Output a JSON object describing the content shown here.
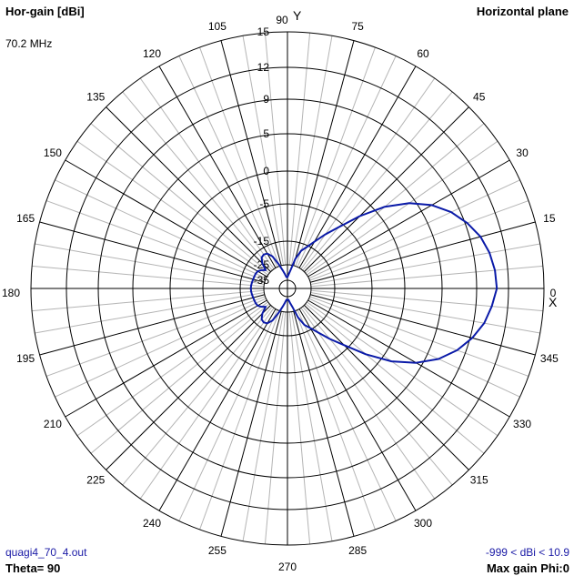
{
  "header": {
    "title_left": "Hor-gain [dBi]",
    "title_right": "Horizontal plane",
    "frequency": "70.2 MHz"
  },
  "footer": {
    "filename": "quagi4_70_4.out",
    "theta": "Theta= 90",
    "range": "-999 < dBi < 10.9",
    "max_gain": "Max gain Phi:0"
  },
  "colors": {
    "pattern": "#0a1aa8",
    "grid_major": "#000000",
    "grid_minor": "#b4b4b4",
    "footer_text": "#1a1aa6"
  },
  "chart_data": {
    "type": "polar-line",
    "title": "Hor-gain [dBi]",
    "subtitle": "Horizontal plane",
    "radial_unit": "dBi",
    "radial_ticks": [
      "15",
      "12",
      "9",
      "5",
      "0",
      "-5",
      "-15",
      "-25",
      "-35"
    ],
    "radial_tick_values": [
      15,
      12,
      9,
      5,
      0,
      -5,
      -15,
      -25,
      -35
    ],
    "angle_ticks": [
      "0",
      "15",
      "30",
      "45",
      "60",
      "75",
      "90",
      "105",
      "120",
      "135",
      "150",
      "165",
      "180",
      "195",
      "210",
      "225",
      "240",
      "255",
      "270",
      "285",
      "300",
      "315",
      "330",
      "345"
    ],
    "axis_labels": {
      "x": "X",
      "y": "Y"
    },
    "grid_major_step_deg": 15,
    "grid_minor_step_deg": 5,
    "series": [
      {
        "phi_deg": [
          0,
          5,
          10,
          15,
          20,
          25,
          30,
          35,
          40,
          45,
          50,
          55,
          60,
          65,
          70,
          75,
          80,
          85,
          90,
          95,
          100,
          105,
          110,
          115,
          120,
          125,
          130,
          135,
          140,
          145,
          150,
          155,
          160,
          165,
          170,
          175,
          180,
          185,
          190,
          195,
          200,
          205,
          210,
          215,
          220,
          225,
          230,
          235,
          240,
          245,
          250,
          255,
          260,
          265,
          270,
          275,
          280,
          285,
          290,
          295,
          300,
          305,
          310,
          315,
          320,
          325,
          330,
          335,
          340,
          345,
          350,
          355
        ],
        "gain_dbi": [
          10.9,
          10.8,
          10.5,
          10.0,
          9.2,
          8.0,
          6.4,
          4.2,
          1.3,
          -2.3,
          -6.2,
          -10.0,
          -13.2,
          -15.7,
          -18.0,
          -22.0,
          -28.0,
          -31.0,
          -33.0,
          -33.0,
          -31.0,
          -28.0,
          -24.0,
          -20.0,
          -18.0,
          -17.5,
          -18.0,
          -20.0,
          -23.0,
          -21.5,
          -20.5,
          -20.2,
          -20.1,
          -20.0,
          -19.8,
          -19.6,
          -19.5,
          -19.6,
          -19.8,
          -20.0,
          -20.1,
          -20.2,
          -20.5,
          -21.5,
          -23.0,
          -20.0,
          -18.0,
          -17.5,
          -18.0,
          -20.0,
          -24.0,
          -28.0,
          -31.0,
          -33.0,
          -33.0,
          -33.0,
          -31.0,
          -28.0,
          -22.0,
          -18.0,
          -15.7,
          -13.2,
          -10.0,
          -6.2,
          -2.3,
          1.3,
          4.2,
          6.4,
          8.0,
          9.2,
          10.0,
          10.5
        ]
      }
    ]
  }
}
